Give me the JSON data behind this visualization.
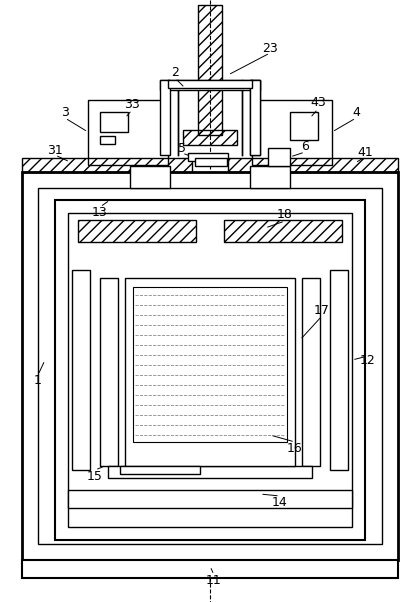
{
  "bg_color": "#ffffff",
  "line_color": "#000000",
  "fig_width": 4.2,
  "fig_height": 6.02,
  "dpi": 100
}
